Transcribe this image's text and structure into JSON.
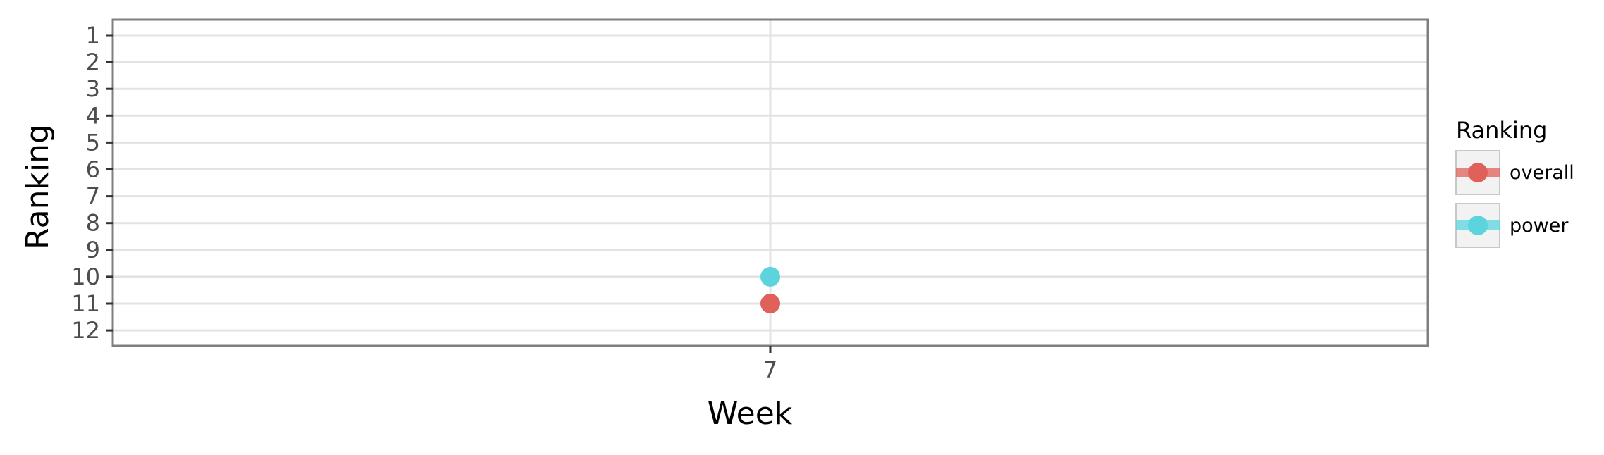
{
  "chart_data": {
    "type": "scatter",
    "xlabel": "Week",
    "ylabel": "Ranking",
    "x_ticks": [
      "7"
    ],
    "y_ticks": [
      "1",
      "2",
      "3",
      "4",
      "5",
      "6",
      "7",
      "8",
      "9",
      "10",
      "11",
      "12"
    ],
    "ylim": [
      12,
      1
    ],
    "y_reversed": true,
    "grid": true,
    "legend": {
      "title": "Ranking",
      "placement": "right",
      "entries": [
        {
          "label": "overall",
          "color": "#E0605A"
        },
        {
          "label": "power",
          "color": "#5BD4DE"
        }
      ]
    },
    "series": [
      {
        "name": "overall",
        "color": "#E0605A",
        "points": [
          {
            "x": 7,
            "y": 11
          }
        ]
      },
      {
        "name": "power",
        "color": "#5BD4DE",
        "points": [
          {
            "x": 7,
            "y": 10
          }
        ]
      }
    ]
  }
}
